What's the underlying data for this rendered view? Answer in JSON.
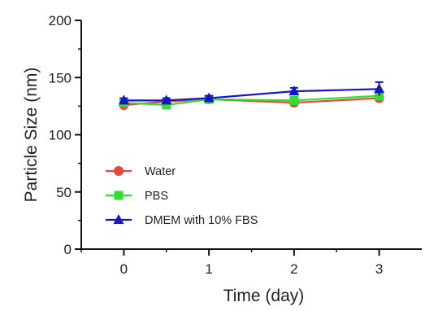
{
  "chart_data": {
    "type": "line",
    "xlabel": "Time (day)",
    "ylabel": "Particle Size (nm)",
    "xlim": [
      -0.5,
      3.5
    ],
    "ylim": [
      0,
      200
    ],
    "x_ticks": [
      0,
      1,
      2,
      3
    ],
    "x_minor_ticks": [
      -0.5,
      0.5,
      1.5,
      2.5
    ],
    "y_ticks": [
      0,
      50,
      100,
      150,
      200
    ],
    "y_minor_ticks": [
      25,
      75,
      125,
      175
    ],
    "grid": false,
    "legend": {
      "position": "bottom-left"
    },
    "series": [
      {
        "name": "Water",
        "color": "#e8453c",
        "marker": "circle",
        "x": [
          0,
          0.5,
          1,
          2,
          3
        ],
        "y": [
          126,
          129,
          131,
          128,
          132
        ],
        "error": [
          2,
          2,
          2,
          2,
          3
        ]
      },
      {
        "name": "PBS",
        "color": "#33dd33",
        "marker": "square",
        "x": [
          0,
          0.5,
          1,
          2,
          3
        ],
        "y": [
          128,
          126,
          131,
          130,
          134
        ],
        "error": [
          2,
          2,
          2,
          2,
          3
        ]
      },
      {
        "name": "DMEM with 10% FBS",
        "color": "#1515c8",
        "marker": "triangle",
        "x": [
          0,
          0.5,
          1,
          2,
          3
        ],
        "y": [
          130,
          130,
          132,
          138,
          140
        ],
        "error": [
          2,
          2,
          2,
          3,
          6
        ]
      }
    ]
  }
}
